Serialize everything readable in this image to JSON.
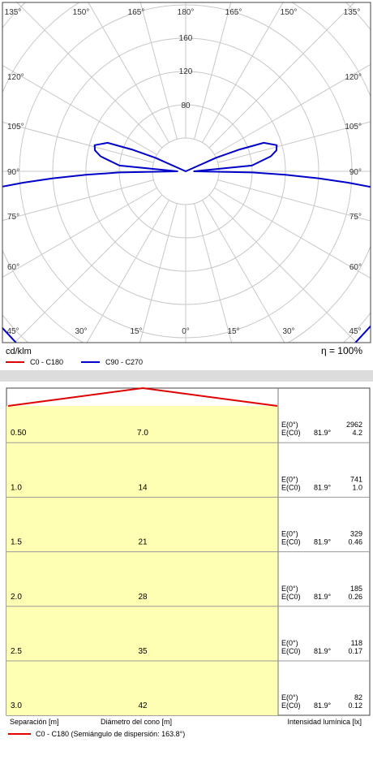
{
  "chart_data": [
    {
      "type": "polar",
      "unit_label": "cd/klm",
      "efficiency_label": "η = 100%",
      "radial_ticks": [
        "80",
        "120",
        "160"
      ],
      "rlim": [
        0,
        200
      ],
      "angle_labels": {
        "top": [
          "135°",
          "150°",
          "165°",
          "180°",
          "165°",
          "150°",
          "135°"
        ],
        "bottom": [
          "45°",
          "30°",
          "15°",
          "0°",
          "15°",
          "30°",
          "45°"
        ],
        "left": [
          "120°",
          "105°",
          "90°",
          "75°",
          "60°"
        ],
        "right": [
          "120°",
          "105°",
          "90°",
          "75°",
          "60°"
        ]
      },
      "grid": true,
      "legend_position": "bottom-left",
      "series": [
        {
          "name": "C0 - C180",
          "color": "#e00000",
          "points": []
        },
        {
          "name": "C90 - C270",
          "color": "#0000c8",
          "points": [
            [
              0,
              150
            ],
            [
              10,
              150
            ],
            [
              20,
              148
            ],
            [
              30,
              147
            ],
            [
              40,
              146
            ],
            [
              50,
              145
            ],
            [
              60,
              144
            ],
            [
              70,
              143
            ],
            [
              75,
              142
            ],
            [
              80,
              138
            ],
            [
              83,
              130
            ],
            [
              85,
              115
            ],
            [
              86,
              98
            ],
            [
              87,
              80
            ],
            [
              88,
              60
            ],
            [
              89,
              40
            ],
            [
              90,
              5
            ],
            [
              95,
              40
            ],
            [
              100,
              52
            ],
            [
              103,
              56
            ],
            [
              106,
              57
            ],
            [
              110,
              50
            ],
            [
              112,
              35
            ],
            [
              114,
              20
            ],
            [
              180,
              0
            ]
          ]
        }
      ]
    },
    {
      "type": "table",
      "y_axis_label": "Separación [m]",
      "cone_label": "Diámetro del cono [m]",
      "right_label": "Intensidad lumínica [lx]",
      "rows": [
        {
          "distance": "0.50",
          "diameter": "7.0",
          "e0_label": "E(0°)",
          "e0": "2962",
          "ec0_label": "E(C0)",
          "angle": "81.9°",
          "ec0": "4.2"
        },
        {
          "distance": "1.0",
          "diameter": "14",
          "e0_label": "E(0°)",
          "e0": "741",
          "ec0_label": "E(C0)",
          "angle": "81.9°",
          "ec0": "1.0"
        },
        {
          "distance": "1.5",
          "diameter": "21",
          "e0_label": "E(0°)",
          "e0": "329",
          "ec0_label": "E(C0)",
          "angle": "81.9°",
          "ec0": "0.46"
        },
        {
          "distance": "2.0",
          "diameter": "28",
          "e0_label": "E(0°)",
          "e0": "185",
          "ec0_label": "E(C0)",
          "angle": "81.9°",
          "ec0": "0.26"
        },
        {
          "distance": "2.5",
          "diameter": "35",
          "e0_label": "E(0°)",
          "e0": "118",
          "ec0_label": "E(C0)",
          "angle": "81.9°",
          "ec0": "0.17"
        },
        {
          "distance": "3.0",
          "diameter": "42",
          "e0_label": "E(0°)",
          "e0": "82",
          "ec0_label": "E(C0)",
          "angle": "81.9°",
          "ec0": "0.12"
        }
      ],
      "legend": {
        "name": "C0 - C180 (Semiángulo de dispersión: 163.8°)",
        "color": "#e00000"
      }
    }
  ]
}
